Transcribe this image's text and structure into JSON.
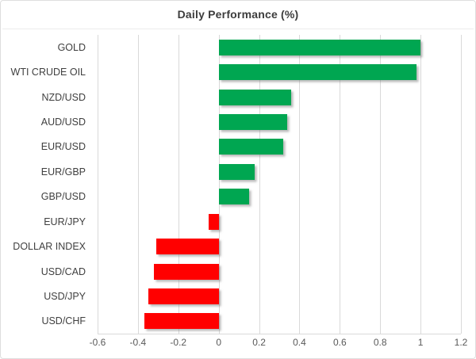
{
  "chart_data": {
    "type": "bar",
    "orientation": "horizontal",
    "title": "Daily Performance (%)",
    "categories": [
      "GOLD",
      "WTI CRUDE OIL",
      "NZD/USD",
      "AUD/USD",
      "EUR/USD",
      "EUR/GBP",
      "GBP/USD",
      "EUR/JPY",
      "DOLLAR INDEX",
      "USD/CAD",
      "USD/JPY",
      "USD/CHF"
    ],
    "values": [
      1.0,
      0.98,
      0.36,
      0.34,
      0.32,
      0.18,
      0.15,
      -0.05,
      -0.31,
      -0.32,
      -0.35,
      -0.37
    ],
    "xlim": [
      -0.6,
      1.2
    ],
    "xticks": [
      -0.6,
      -0.4,
      -0.2,
      0,
      0.2,
      0.4,
      0.6,
      0.8,
      1,
      1.2
    ],
    "xtick_labels": [
      "-0.6",
      "-0.4",
      "-0.2",
      "0",
      "0.2",
      "0.4",
      "0.6",
      "0.8",
      "1",
      "1.2"
    ],
    "grid": true,
    "legend": false,
    "xlabel": "",
    "ylabel": ""
  },
  "colors": {
    "positive_bar": "#00A651",
    "negative_bar": "#FF0000",
    "gridline": "#D9D9D9",
    "axis_line": "#D9D9D9",
    "title_text": "#3C3C3C",
    "category_text": "#3F3F3F",
    "tick_text": "#595959",
    "background": "#FFFFFF",
    "border": "#DEDEDE"
  }
}
